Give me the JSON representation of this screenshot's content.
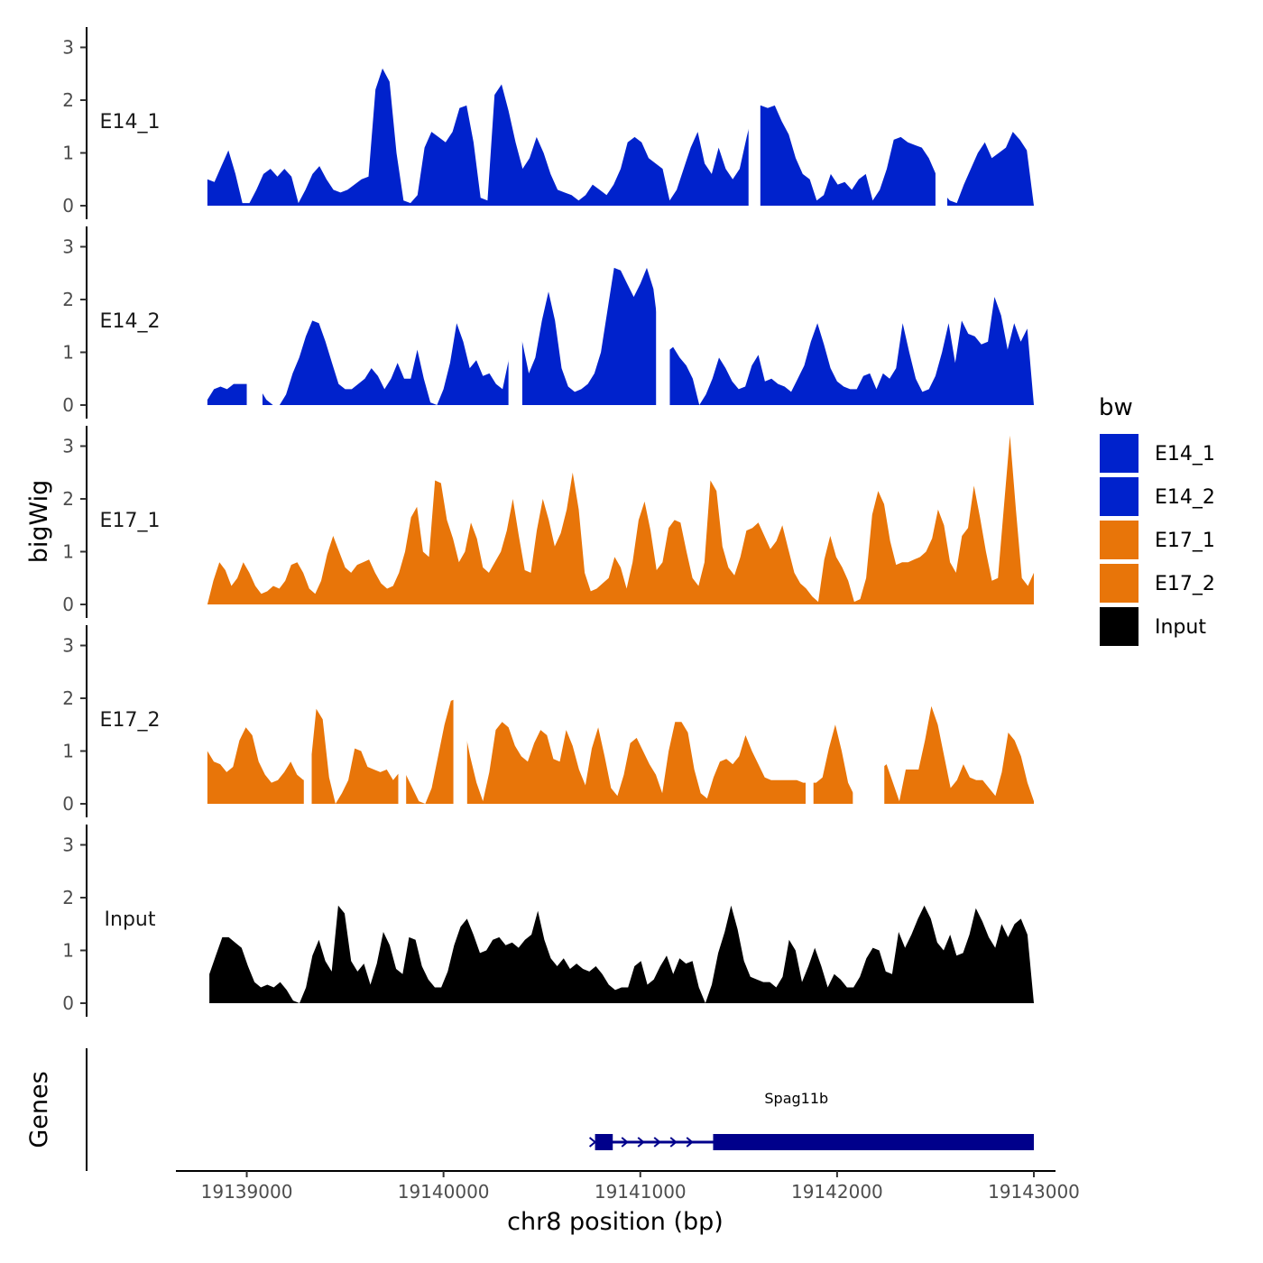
{
  "chart_data": {
    "type": "area",
    "chromosome": "chr8",
    "xlabel": "chr8 position (bp)",
    "ylabel": "bigWig",
    "genes_track_label": "Genes",
    "xlim": [
      19138640,
      19143110
    ],
    "x_ticks": [
      19139000,
      19140000,
      19141000,
      19142000,
      19143000
    ],
    "y_ticks": [
      0,
      1,
      2,
      3
    ],
    "ylim": [
      0,
      3.3
    ],
    "legend": {
      "title": "bw",
      "position": "right",
      "entries": [
        {
          "label": "E14_1",
          "color": "#0022CC"
        },
        {
          "label": "E14_2",
          "color": "#0022CC"
        },
        {
          "label": "E17_1",
          "color": "#E87509"
        },
        {
          "label": "E17_2",
          "color": "#E87509"
        },
        {
          "label": "Input",
          "color": "#000000"
        }
      ]
    },
    "tracks": [
      {
        "name": "E14_1",
        "color": "#0022CC",
        "x_start": 19138800,
        "x_end": 19143000,
        "values": [
          0.5,
          0.45,
          0.75,
          1.05,
          0.6,
          0.05,
          0.05,
          0.3,
          0.6,
          0.7,
          0.55,
          0.7,
          0.55,
          0.05,
          0.3,
          0.6,
          0.75,
          0.5,
          0.3,
          0.25,
          0.3,
          0.4,
          0.5,
          0.55,
          2.2,
          2.6,
          2.35,
          1.0,
          0.1,
          0.05,
          0.2,
          1.1,
          1.4,
          1.3,
          1.2,
          1.4,
          1.85,
          1.9,
          1.2,
          0.15,
          0.1,
          2.1,
          2.3,
          1.8,
          1.2,
          0.7,
          0.9,
          1.3,
          1.0,
          0.6,
          0.3,
          0.25,
          0.2,
          0.1,
          0.2,
          0.4,
          0.3,
          0.2,
          0.4,
          0.7,
          1.2,
          1.3,
          1.2,
          0.9,
          0.8,
          0.7,
          0.1,
          0.3,
          0.7,
          1.1,
          1.4,
          0.8,
          0.6,
          1.1,
          0.7,
          0.5,
          0.7,
          1.3,
          1.85,
          1.9,
          1.85,
          1.9,
          1.6,
          1.35,
          0.9,
          0.6,
          0.5,
          0.1,
          0.2,
          0.6,
          0.4,
          0.45,
          0.3,
          0.5,
          0.6,
          0.1,
          0.3,
          0.7,
          1.25,
          1.3,
          1.2,
          1.15,
          1.1,
          0.9,
          0.6,
          0.25,
          0.1,
          0.05,
          0.4,
          0.7,
          1.0,
          1.2,
          0.9,
          1.0,
          1.1,
          1.4,
          1.25,
          1.05,
          0.0
        ],
        "gaps": [
          [
            19141550,
            19141610
          ],
          [
            19142500,
            19142560
          ]
        ]
      },
      {
        "name": "E14_2",
        "color": "#0022CC",
        "x_start": 19138800,
        "x_end": 19143000,
        "values": [
          0.1,
          0.3,
          0.35,
          0.3,
          0.4,
          0.4,
          0.4,
          0.4,
          0.3,
          0.1,
          0.0,
          0.0,
          0.2,
          0.6,
          0.9,
          1.3,
          1.6,
          1.55,
          1.2,
          0.8,
          0.4,
          0.3,
          0.3,
          0.4,
          0.5,
          0.7,
          0.55,
          0.3,
          0.5,
          0.8,
          0.5,
          0.5,
          1.05,
          0.5,
          0.05,
          0.0,
          0.3,
          0.8,
          1.55,
          1.2,
          0.7,
          0.85,
          0.55,
          0.6,
          0.4,
          0.3,
          0.9,
          1.4,
          1.2,
          0.6,
          0.9,
          1.6,
          2.15,
          1.6,
          0.7,
          0.35,
          0.25,
          0.3,
          0.4,
          0.6,
          1.0,
          1.8,
          2.6,
          2.55,
          2.3,
          2.05,
          2.3,
          2.6,
          2.2,
          1.2,
          1.0,
          1.1,
          0.9,
          0.75,
          0.5,
          0.0,
          0.2,
          0.5,
          0.9,
          0.7,
          0.45,
          0.3,
          0.35,
          0.75,
          0.95,
          0.45,
          0.5,
          0.4,
          0.35,
          0.25,
          0.5,
          0.75,
          1.2,
          1.55,
          1.15,
          0.7,
          0.45,
          0.35,
          0.3,
          0.3,
          0.55,
          0.6,
          0.3,
          0.6,
          0.5,
          0.7,
          1.55,
          1.0,
          0.5,
          0.25,
          0.3,
          0.55,
          1.0,
          1.55,
          0.8,
          1.6,
          1.35,
          1.3,
          1.15,
          1.2,
          2.05,
          1.7,
          1.05,
          1.55,
          1.2,
          1.45,
          0.0
        ],
        "gaps": [
          [
            19139000,
            19139080
          ],
          [
            19140330,
            19140400
          ],
          [
            19141080,
            19141150
          ]
        ]
      },
      {
        "name": "E17_1",
        "color": "#E87509",
        "x_start": 19138800,
        "x_end": 19143000,
        "values": [
          0.0,
          0.45,
          0.8,
          0.65,
          0.35,
          0.5,
          0.8,
          0.6,
          0.35,
          0.2,
          0.25,
          0.35,
          0.3,
          0.45,
          0.75,
          0.8,
          0.6,
          0.3,
          0.2,
          0.45,
          0.95,
          1.3,
          1.0,
          0.7,
          0.6,
          0.75,
          0.8,
          0.85,
          0.6,
          0.4,
          0.3,
          0.35,
          0.6,
          1.0,
          1.65,
          1.85,
          1.0,
          0.9,
          2.35,
          2.3,
          1.6,
          1.25,
          0.8,
          1.0,
          1.55,
          1.25,
          0.7,
          0.6,
          0.8,
          1.0,
          1.4,
          2.0,
          1.3,
          0.65,
          0.6,
          1.4,
          2.0,
          1.6,
          1.1,
          1.35,
          1.8,
          2.5,
          1.8,
          0.6,
          0.25,
          0.3,
          0.4,
          0.5,
          0.9,
          0.7,
          0.3,
          0.8,
          1.6,
          1.95,
          1.4,
          0.65,
          0.8,
          1.45,
          1.6,
          1.55,
          1.0,
          0.5,
          0.35,
          0.8,
          2.35,
          2.15,
          1.1,
          0.7,
          0.55,
          0.9,
          1.4,
          1.45,
          1.55,
          1.3,
          1.05,
          1.2,
          1.5,
          1.05,
          0.6,
          0.4,
          0.3,
          0.15,
          0.05,
          0.85,
          1.3,
          0.9,
          0.7,
          0.45,
          0.05,
          0.1,
          0.5,
          1.7,
          2.15,
          1.9,
          1.2,
          0.75,
          0.8,
          0.8,
          0.85,
          0.9,
          1.0,
          1.25,
          1.8,
          1.5,
          0.8,
          0.6,
          1.3,
          1.45,
          2.25,
          1.65,
          1.0,
          0.45,
          0.5,
          1.85,
          3.2,
          1.8,
          0.5,
          0.35,
          0.6
        ],
        "gaps": []
      },
      {
        "name": "E17_2",
        "color": "#E87509",
        "x_start": 19138800,
        "x_end": 19143000,
        "values": [
          1.0,
          0.8,
          0.75,
          0.6,
          0.7,
          1.2,
          1.45,
          1.3,
          0.8,
          0.55,
          0.4,
          0.45,
          0.6,
          0.8,
          0.55,
          0.45,
          0.6,
          1.8,
          1.6,
          0.5,
          0.0,
          0.2,
          0.45,
          1.05,
          1.0,
          0.7,
          0.65,
          0.6,
          0.65,
          0.45,
          0.6,
          0.55,
          0.3,
          0.05,
          0.0,
          0.3,
          0.9,
          1.5,
          1.95,
          2.0,
          1.5,
          0.9,
          0.4,
          0.05,
          0.6,
          1.4,
          1.55,
          1.45,
          1.1,
          0.9,
          0.8,
          1.15,
          1.4,
          1.3,
          0.85,
          0.8,
          1.4,
          1.1,
          0.65,
          0.35,
          1.05,
          1.45,
          0.9,
          0.3,
          0.15,
          0.55,
          1.15,
          1.25,
          1.0,
          0.75,
          0.55,
          0.2,
          1.0,
          1.55,
          1.55,
          1.35,
          0.65,
          0.2,
          0.1,
          0.5,
          0.8,
          0.85,
          0.75,
          0.9,
          1.3,
          1.0,
          0.75,
          0.5,
          0.45,
          0.45,
          0.45,
          0.45,
          0.45,
          0.4,
          0.4,
          0.4,
          0.5,
          1.05,
          1.5,
          1.0,
          0.4,
          0.15,
          0.3,
          0.7,
          0.75,
          0.65,
          0.75,
          0.4,
          0.05,
          0.65,
          0.65,
          0.65,
          1.2,
          1.85,
          1.5,
          0.9,
          0.3,
          0.45,
          0.75,
          0.5,
          0.45,
          0.45,
          0.3,
          0.15,
          0.6,
          1.35,
          1.2,
          0.9,
          0.4,
          0.05
        ],
        "gaps": [
          [
            19139290,
            19139330
          ],
          [
            19139770,
            19139810
          ],
          [
            19140050,
            19140120
          ],
          [
            19141840,
            19141880
          ],
          [
            19142080,
            19142240
          ]
        ]
      },
      {
        "name": "Input",
        "color": "#000000",
        "x_start": 19138810,
        "x_end": 19143000,
        "values": [
          0.55,
          0.9,
          1.25,
          1.25,
          1.15,
          1.05,
          0.7,
          0.4,
          0.3,
          0.35,
          0.3,
          0.4,
          0.25,
          0.05,
          0.0,
          0.3,
          0.9,
          1.2,
          0.8,
          0.6,
          1.85,
          1.7,
          0.8,
          0.6,
          0.75,
          0.35,
          0.75,
          1.35,
          1.1,
          0.65,
          0.55,
          1.25,
          1.2,
          0.7,
          0.45,
          0.3,
          0.3,
          0.6,
          1.1,
          1.45,
          1.6,
          1.3,
          0.95,
          1.0,
          1.2,
          1.25,
          1.1,
          1.15,
          1.05,
          1.2,
          1.3,
          1.75,
          1.2,
          0.85,
          0.7,
          0.85,
          0.65,
          0.75,
          0.65,
          0.6,
          0.7,
          0.55,
          0.35,
          0.25,
          0.3,
          0.3,
          0.7,
          0.8,
          0.35,
          0.45,
          0.7,
          0.9,
          0.55,
          0.85,
          0.75,
          0.8,
          0.3,
          0.0,
          0.35,
          0.95,
          1.35,
          1.85,
          1.4,
          0.8,
          0.5,
          0.45,
          0.4,
          0.4,
          0.3,
          0.5,
          1.2,
          1.0,
          0.4,
          0.7,
          1.05,
          0.7,
          0.3,
          0.55,
          0.45,
          0.3,
          0.3,
          0.5,
          0.85,
          1.05,
          1.0,
          0.6,
          0.55,
          1.35,
          1.05,
          1.3,
          1.6,
          1.85,
          1.6,
          1.15,
          1.0,
          1.3,
          0.9,
          0.95,
          1.3,
          1.8,
          1.55,
          1.25,
          1.05,
          1.5,
          1.25,
          1.5,
          1.6,
          1.3,
          0.0
        ],
        "gaps": []
      }
    ],
    "genes": [
      {
        "name": "Spag11b",
        "start": 19140770,
        "end": 19143000,
        "strand": "+",
        "exons": [
          [
            19140770,
            19140860
          ],
          [
            19141370,
            19143000
          ]
        ]
      }
    ]
  }
}
